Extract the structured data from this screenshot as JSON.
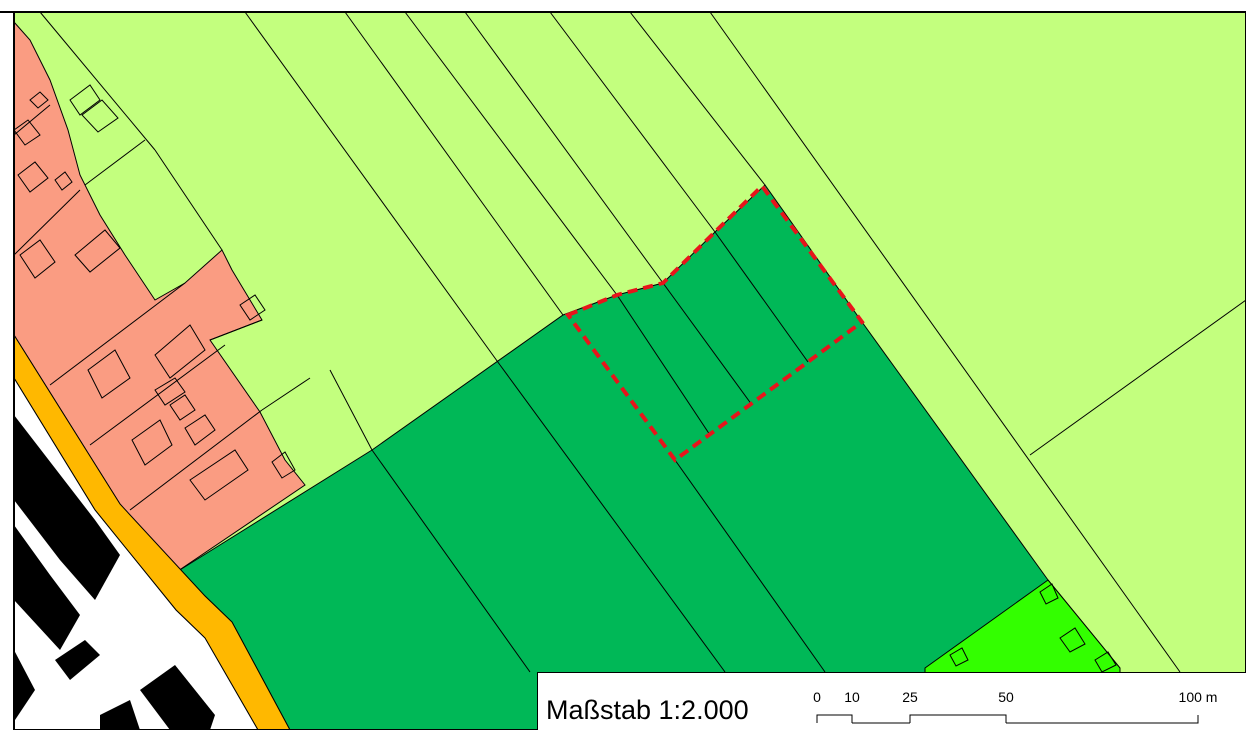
{
  "map": {
    "colors": {
      "background": "#ffffff",
      "agricultural_light": "#c3ff7e",
      "agricultural_dark": "#00b857",
      "residential": "#fa9c82",
      "bright_green": "#33ff00",
      "road_band": "#ffb800",
      "buildings_dark": "#000000",
      "highlight_boundary": "#e8141b",
      "parcel_lines": "#000000"
    },
    "icons": [
      "highlighted-parcel-outline",
      "building-outline"
    ]
  },
  "scale": {
    "title": "Maßstab 1:2.000",
    "ticks": [
      "0",
      "10",
      "25",
      "50",
      "100 m"
    ],
    "tick_values_m": [
      0,
      10,
      25,
      50,
      100
    ]
  }
}
